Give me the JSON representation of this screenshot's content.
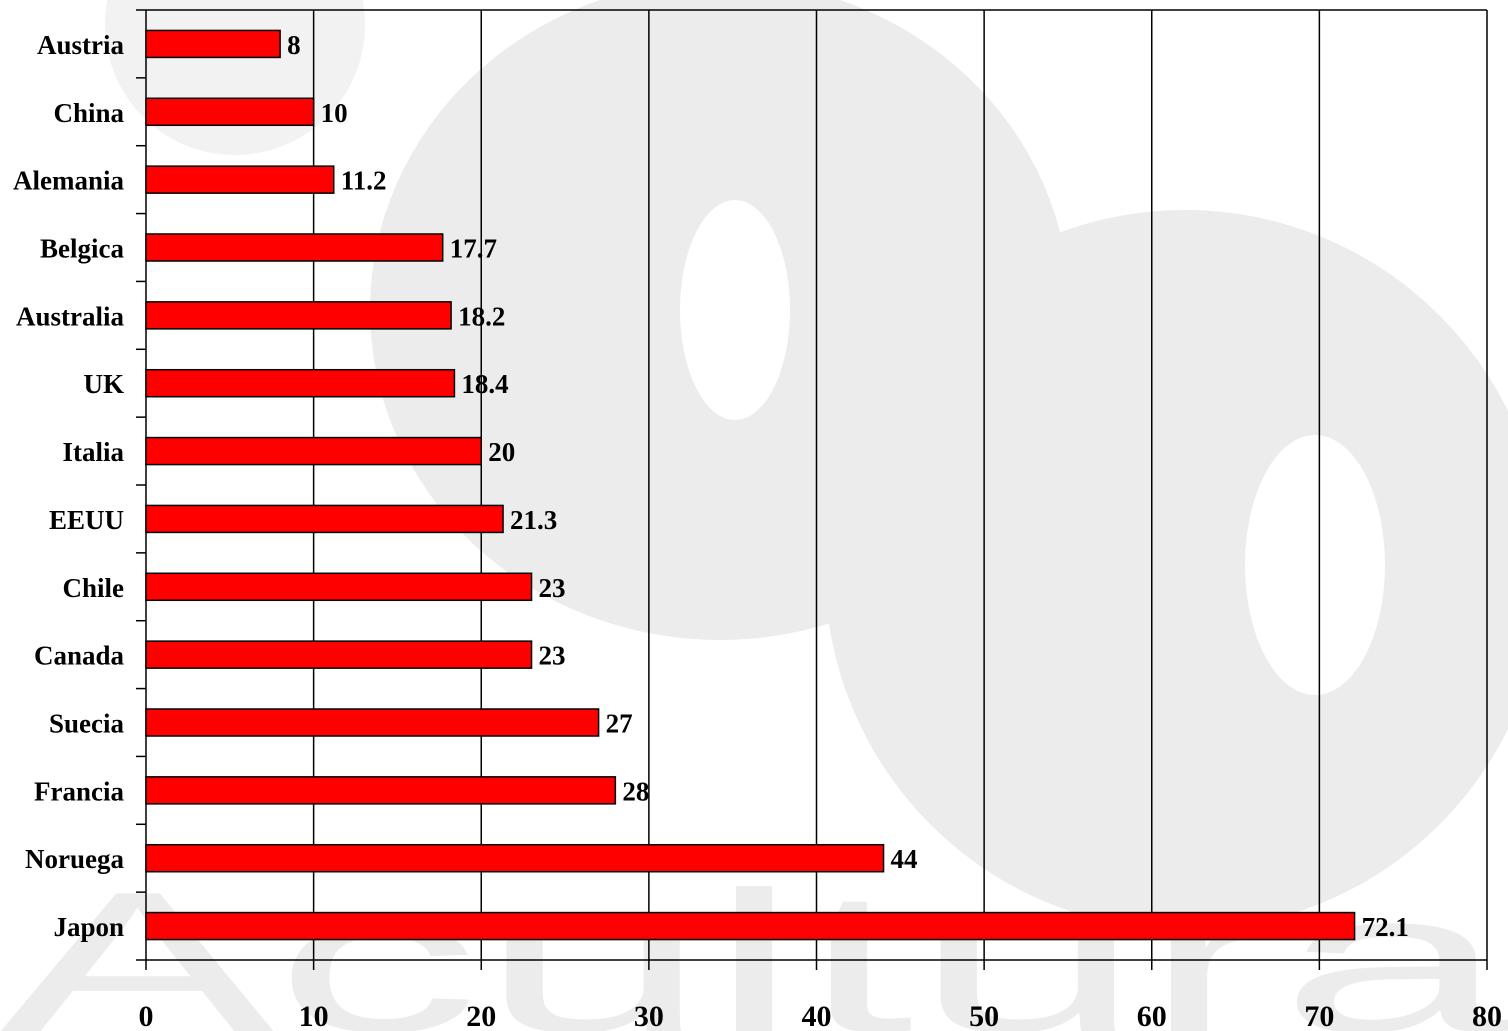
{
  "colors": {
    "bar_fill": "#ff0000",
    "bar_stroke": "#000000",
    "gridline": "#000000",
    "watermark": "#e6e6e6"
  },
  "watermark": {
    "text": "Acultura"
  },
  "chart_data": {
    "type": "bar",
    "orientation": "horizontal",
    "title": "",
    "xlabel": "",
    "ylabel": "",
    "categories": [
      "Austria",
      "China",
      "Alemania",
      "Belgica",
      "Australia",
      "UK",
      "Italia",
      "EEUU",
      "Chile",
      "Canada",
      "Suecia",
      "Francia",
      "Noruega",
      "Japon"
    ],
    "values": [
      8,
      10,
      11.2,
      17.7,
      18.2,
      18.4,
      20,
      21.3,
      23,
      23,
      27,
      28,
      44,
      72.1
    ],
    "value_labels": [
      "8",
      "10",
      "11.2",
      "17.7",
      "18.2",
      "18.4",
      "20",
      "21.3",
      "23",
      "23",
      "27",
      "28",
      "44",
      "72.1"
    ],
    "xlim": [
      0,
      80
    ],
    "x_ticks": [
      0,
      10,
      20,
      30,
      40,
      50,
      60,
      70,
      80
    ],
    "grid": "vertical",
    "legend": "none"
  }
}
